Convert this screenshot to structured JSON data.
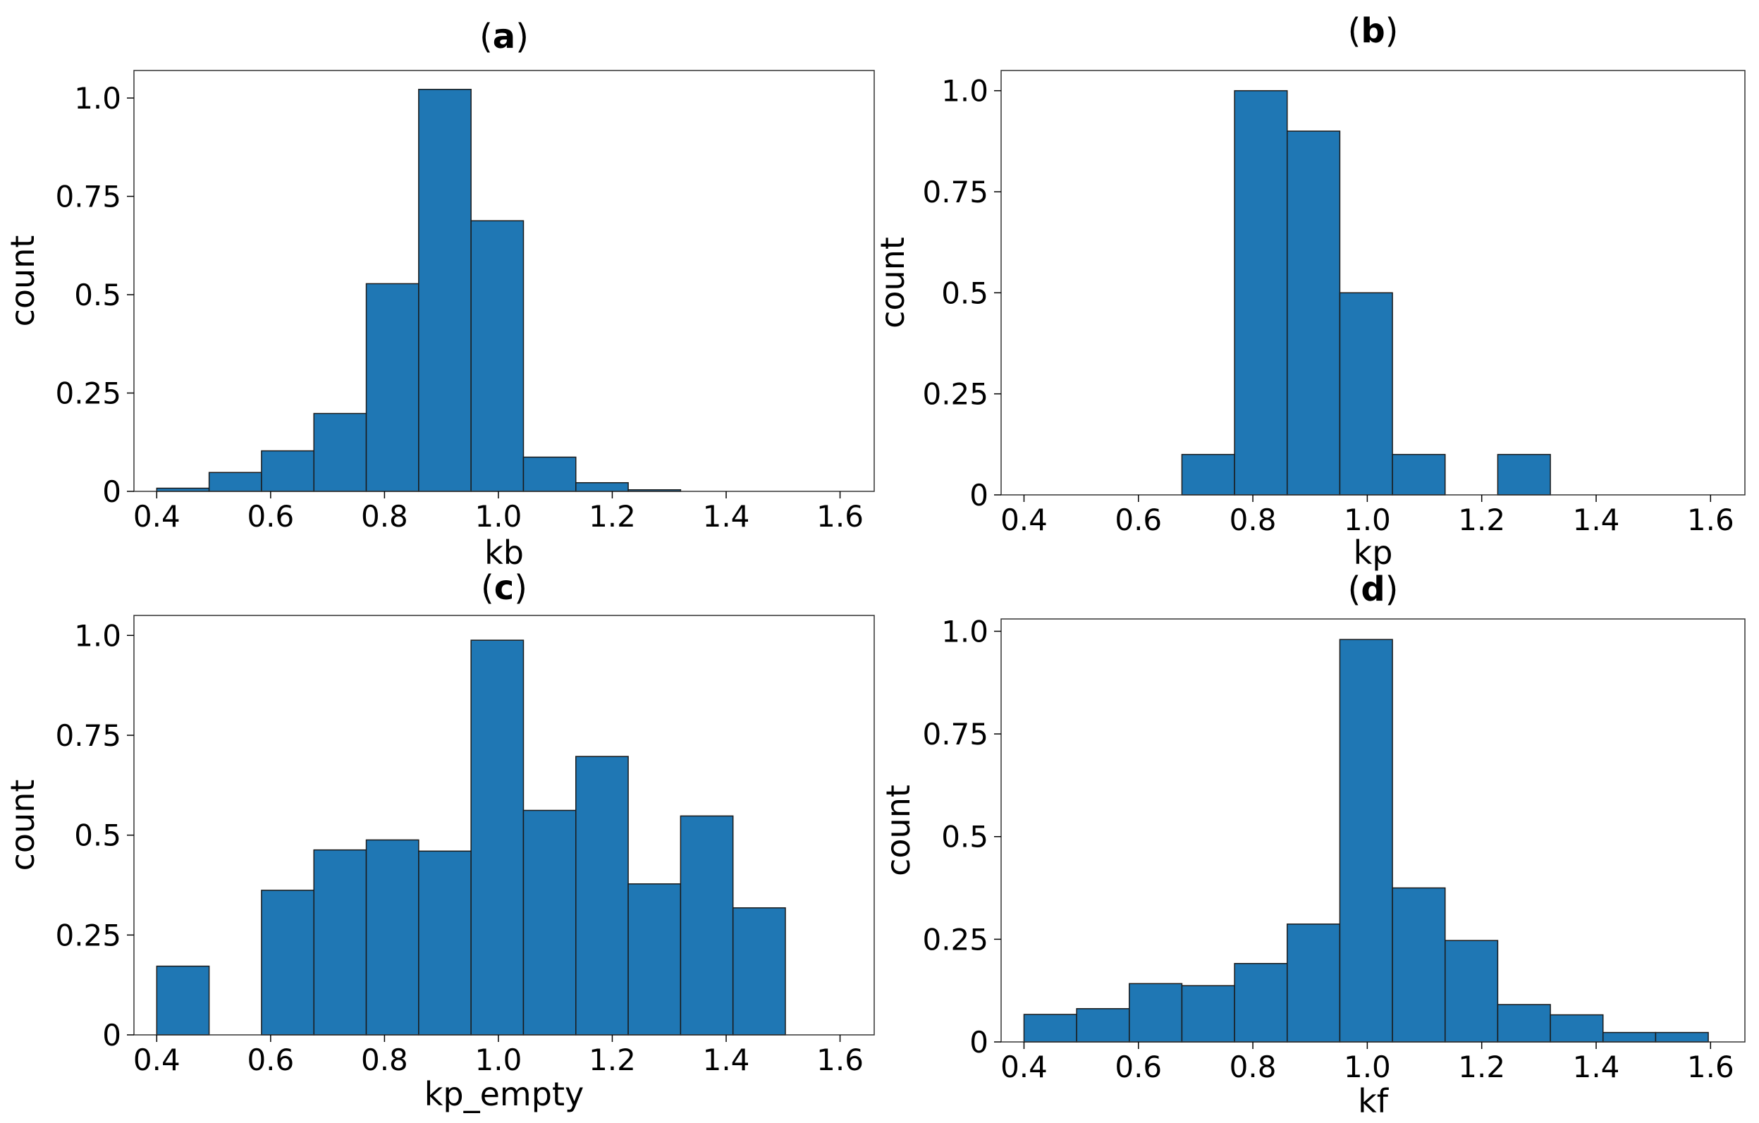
{
  "chart_data": [
    {
      "type": "bar",
      "panel": "a",
      "title_letter": "a",
      "xlabel": "kb",
      "ylabel": "count",
      "xlim": [
        0.36,
        1.66
      ],
      "ylim": [
        0,
        1.07
      ],
      "xticks": [
        "0.4",
        "0.6",
        "0.8",
        "1.0",
        "1.2",
        "1.4",
        "1.6"
      ],
      "yticks": [
        "0",
        "0.25",
        "0.5",
        "0.75",
        "1.0"
      ],
      "bin_start": 0.4,
      "bin_width": 0.092,
      "values": [
        0.008,
        0.048,
        0.103,
        0.198,
        0.528,
        1.022,
        0.688,
        0.087,
        0.022,
        0.004,
        0,
        0,
        0
      ],
      "color": "#1f77b4"
    },
    {
      "type": "bar",
      "panel": "b",
      "title_letter": "b",
      "xlabel": "kp",
      "ylabel": "count",
      "xlim": [
        0.36,
        1.66
      ],
      "ylim": [
        0,
        1.05
      ],
      "xticks": [
        "0.4",
        "0.6",
        "0.8",
        "1.0",
        "1.2",
        "1.4",
        "1.6"
      ],
      "yticks": [
        "0",
        "0.25",
        "0.5",
        "0.75",
        "1.0"
      ],
      "bin_start": 0.4,
      "bin_width": 0.092,
      "values": [
        0,
        0,
        0,
        0.1,
        1.0,
        0.9,
        0.5,
        0.1,
        0,
        0.1,
        0,
        0,
        0
      ],
      "color": "#1f77b4"
    },
    {
      "type": "bar",
      "panel": "c",
      "title_letter": "c",
      "xlabel": "kp_empty",
      "ylabel": "count",
      "xlim": [
        0.36,
        1.66
      ],
      "ylim": [
        0,
        1.05
      ],
      "xticks": [
        "0.4",
        "0.6",
        "0.8",
        "1.0",
        "1.2",
        "1.4",
        "1.6"
      ],
      "yticks": [
        "0",
        "0.25",
        "0.5",
        "0.75",
        "1.0"
      ],
      "bin_start": 0.4,
      "bin_width": 0.092,
      "values": [
        0.172,
        0,
        0.362,
        0.463,
        0.488,
        0.46,
        0.988,
        0.562,
        0.697,
        0.378,
        0.548,
        0.318,
        0
      ],
      "color": "#1f77b4"
    },
    {
      "type": "bar",
      "panel": "d",
      "title_letter": "d",
      "xlabel": "kf",
      "ylabel": "count",
      "xlim": [
        0.36,
        1.66
      ],
      "ylim": [
        0,
        1.03
      ],
      "xticks": [
        "0.4",
        "0.6",
        "0.8",
        "1.0",
        "1.2",
        "1.4",
        "1.6"
      ],
      "yticks": [
        "0",
        "0.25",
        "0.5",
        "0.75",
        "1.0"
      ],
      "bin_start": 0.4,
      "bin_width": 0.092,
      "values": [
        0.067,
        0.081,
        0.142,
        0.137,
        0.191,
        0.287,
        0.98,
        0.375,
        0.247,
        0.091,
        0.066,
        0.023,
        0.023
      ],
      "color": "#1f77b4"
    }
  ]
}
